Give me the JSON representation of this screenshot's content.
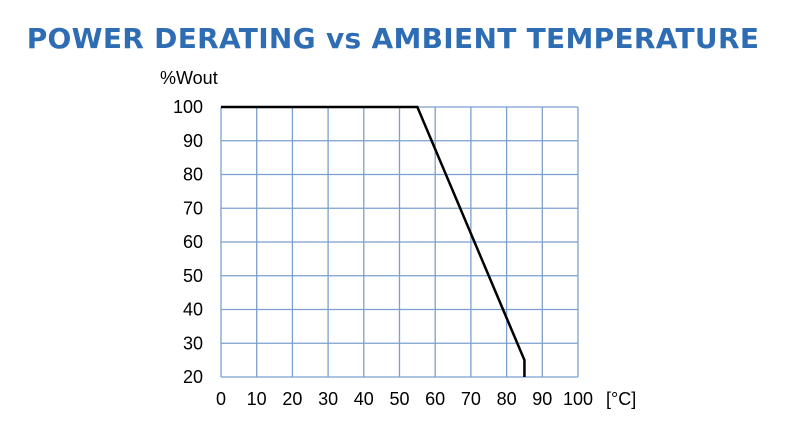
{
  "title": "POWER DERATING vs AMBIENT TEMPERATURE",
  "colors": {
    "title": "#2e6db4",
    "grid": "#7aa0cf",
    "line": "#000000"
  },
  "chart_data": {
    "type": "line",
    "title": "POWER DERATING vs AMBIENT TEMPERATURE",
    "ylabel": "%Wout",
    "xlabel": "",
    "x_unit_label": "[°C]",
    "xlim": [
      0,
      100
    ],
    "ylim": [
      20,
      100
    ],
    "xticks": [
      0,
      10,
      20,
      30,
      40,
      50,
      60,
      70,
      80,
      90,
      100
    ],
    "yticks": [
      100,
      90,
      80,
      70,
      60,
      50,
      40,
      30,
      20
    ],
    "grid": true,
    "series": [
      {
        "x": [
          0,
          55,
          85,
          85
        ],
        "y": [
          100,
          100,
          25,
          20
        ]
      }
    ]
  }
}
